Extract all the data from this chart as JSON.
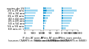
{
  "panels": [
    {
      "xlim": [
        0,
        1000
      ],
      "xticks": [
        0,
        500,
        1000
      ],
      "xtick_labels": [
        "0",
        "500",
        "1000"
      ],
      "values_light": [
        280,
        420,
        470,
        500,
        530,
        590,
        660,
        760,
        330
      ],
      "values_dark": [
        15,
        20,
        22,
        23,
        24,
        26,
        28,
        32,
        22
      ],
      "caption": "IF des AT avec AP\n(sources CNAMTS et INSEE, annee 2002)"
    },
    {
      "xlim": [
        0,
        120
      ],
      "xticks": [
        0,
        50,
        100
      ],
      "xtick_labels": [
        "0",
        "50",
        "100"
      ],
      "values_light": [
        8,
        12,
        18,
        25,
        35,
        48,
        62,
        80,
        60
      ],
      "values_dark": [
        2,
        3,
        5,
        7,
        10,
        14,
        18,
        24,
        20
      ],
      "caption": "IF des AT avec IP\n(sources CNAMTS et INSEE)"
    },
    {
      "xlim": [
        0,
        15000
      ],
      "xticks": [
        0,
        5000,
        10000,
        15000
      ],
      "xtick_labels": [
        "0",
        "5000",
        "10000",
        "15000"
      ],
      "values_light": [
        3500,
        6000,
        7500,
        8500,
        9500,
        10500,
        11500,
        13500,
        9500
      ],
      "values_dark": [
        400,
        600,
        700,
        800,
        900,
        1000,
        1200,
        1400,
        1000
      ],
      "caption": "IF des jours perdus\n(sources CNAMTS et INSEE)"
    }
  ],
  "categories": [
    "60 ans et +",
    "55 a 59 ans",
    "50 a 54 ans",
    "45 a 49 ans",
    "40 a 44 ans",
    "35 a 39 ans",
    "30 a 34 ans",
    "25 a 29 ans",
    "moins de 25"
  ],
  "bar_color_dark": "#1e9bd7",
  "bar_color_light": "#9dd6f0",
  "background": "#ffffff",
  "text_color": "#000000",
  "fontsize": 3.0
}
